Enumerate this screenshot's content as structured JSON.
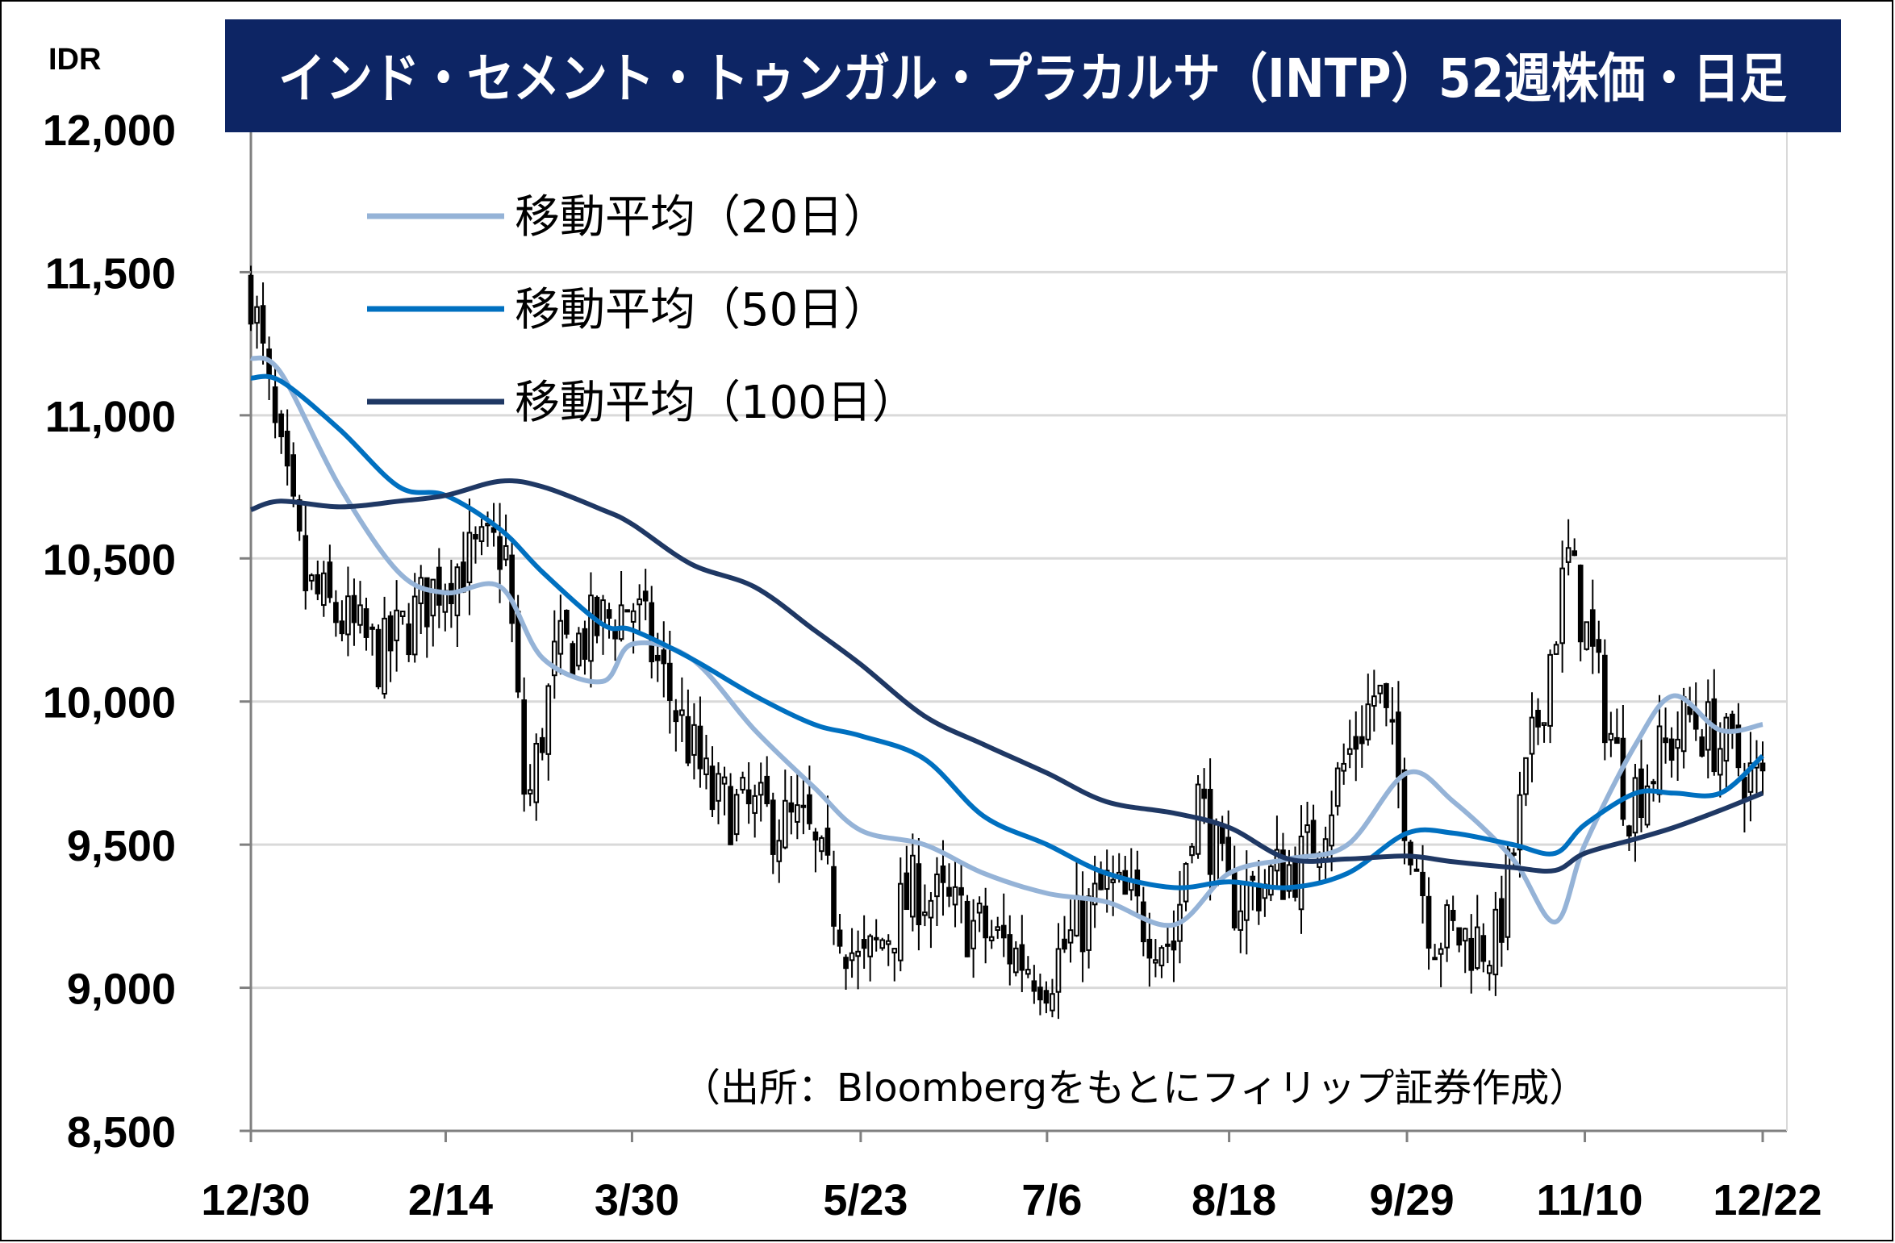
{
  "chart_data": {
    "type": "line",
    "title": "インド・セメント・トゥンガル・プラカルサ（INTP）52週株価・日足",
    "unit": "IDR",
    "ylim": [
      8500,
      12000
    ],
    "y_ticks": [
      "12,000",
      "11,500",
      "11,000",
      "10,500",
      "10,000",
      "9,500",
      "9,000",
      "8,500"
    ],
    "y_tick_values": [
      12000,
      11500,
      11000,
      10500,
      10000,
      9500,
      9000,
      8500
    ],
    "x_ticks": [
      "12/30",
      "2/14",
      "3/30",
      "5/23",
      "7/6",
      "8/18",
      "9/29",
      "11/10",
      "12/22"
    ],
    "grid": true,
    "legend_position": "top-left",
    "source": "（出所：Bloombergをもとにフィリップ証券作成）",
    "candles": {
      "name": "daily price",
      "trading_days": 250,
      "approx_close_anchors": [
        {
          "x": "12/30",
          "close": 11450
        },
        {
          "x": "1/05",
          "close": 10900
        },
        {
          "x": "1/12",
          "close": 10400
        },
        {
          "x": "1/30",
          "close": 10150
        },
        {
          "x": "2/14",
          "close": 10450
        },
        {
          "x": "2/28",
          "close": 10550
        },
        {
          "x": "3/05",
          "close": 9600
        },
        {
          "x": "3/12",
          "close": 10150
        },
        {
          "x": "3/30",
          "close": 10350
        },
        {
          "x": "4/18",
          "close": 9650
        },
        {
          "x": "5/10",
          "close": 9550
        },
        {
          "x": "5/23",
          "close": 9050
        },
        {
          "x": "6/05",
          "close": 9350
        },
        {
          "x": "6/20",
          "close": 9200
        },
        {
          "x": "7/06",
          "close": 9050
        },
        {
          "x": "7/20",
          "close": 9350
        },
        {
          "x": "8/05",
          "close": 9150
        },
        {
          "x": "8/10",
          "close": 9700
        },
        {
          "x": "8/18",
          "close": 9300
        },
        {
          "x": "9/05",
          "close": 9450
        },
        {
          "x": "9/22",
          "close": 10050
        },
        {
          "x": "10/05",
          "close": 9200
        },
        {
          "x": "10/20",
          "close": 9150
        },
        {
          "x": "11/01",
          "close": 10100
        },
        {
          "x": "11/06",
          "close": 10500
        },
        {
          "x": "11/20",
          "close": 9650
        },
        {
          "x": "12/05",
          "close": 9950
        },
        {
          "x": "12/22",
          "close": 9700
        }
      ]
    },
    "series": [
      {
        "name": "移動平均（20日）",
        "color": "#95b3d7",
        "points": [
          [
            "12/30",
            11200
          ],
          [
            "1/06",
            11150
          ],
          [
            "1/20",
            10750
          ],
          [
            "2/03",
            10450
          ],
          [
            "2/14",
            10380
          ],
          [
            "2/27",
            10400
          ],
          [
            "3/09",
            10150
          ],
          [
            "3/23",
            10070
          ],
          [
            "3/30",
            10200
          ],
          [
            "4/13",
            10150
          ],
          [
            "4/28",
            9900
          ],
          [
            "5/12",
            9700
          ],
          [
            "5/23",
            9550
          ],
          [
            "6/07",
            9500
          ],
          [
            "6/21",
            9400
          ],
          [
            "7/06",
            9330
          ],
          [
            "7/20",
            9300
          ],
          [
            "8/05",
            9220
          ],
          [
            "8/18",
            9400
          ],
          [
            "9/01",
            9450
          ],
          [
            "9/15",
            9500
          ],
          [
            "9/29",
            9750
          ],
          [
            "10/10",
            9650
          ],
          [
            "10/24",
            9450
          ],
          [
            "11/03",
            9230
          ],
          [
            "11/10",
            9500
          ],
          [
            "11/22",
            9850
          ],
          [
            "12/01",
            10020
          ],
          [
            "12/12",
            9900
          ],
          [
            "12/22",
            9920
          ]
        ]
      },
      {
        "name": "移動平均（50日）",
        "color": "#0070c0",
        "points": [
          [
            "12/30",
            11130
          ],
          [
            "1/06",
            11120
          ],
          [
            "1/20",
            10950
          ],
          [
            "2/03",
            10750
          ],
          [
            "2/14",
            10720
          ],
          [
            "2/27",
            10600
          ],
          [
            "3/09",
            10450
          ],
          [
            "3/23",
            10270
          ],
          [
            "3/30",
            10250
          ],
          [
            "4/13",
            10150
          ],
          [
            "4/28",
            10020
          ],
          [
            "5/12",
            9920
          ],
          [
            "5/23",
            9880
          ],
          [
            "6/07",
            9800
          ],
          [
            "6/21",
            9600
          ],
          [
            "7/06",
            9500
          ],
          [
            "7/20",
            9400
          ],
          [
            "8/05",
            9350
          ],
          [
            "8/18",
            9370
          ],
          [
            "9/01",
            9350
          ],
          [
            "9/15",
            9400
          ],
          [
            "9/29",
            9540
          ],
          [
            "10/10",
            9540
          ],
          [
            "10/24",
            9500
          ],
          [
            "11/03",
            9470
          ],
          [
            "11/10",
            9570
          ],
          [
            "11/22",
            9680
          ],
          [
            "12/01",
            9680
          ],
          [
            "12/12",
            9680
          ],
          [
            "12/22",
            9810
          ]
        ]
      },
      {
        "name": "移動平均（100日）",
        "color": "#1f3864",
        "points": [
          [
            "12/30",
            10670
          ],
          [
            "1/06",
            10700
          ],
          [
            "1/20",
            10680
          ],
          [
            "2/03",
            10700
          ],
          [
            "2/14",
            10720
          ],
          [
            "2/27",
            10770
          ],
          [
            "3/09",
            10750
          ],
          [
            "3/23",
            10670
          ],
          [
            "3/30",
            10620
          ],
          [
            "4/13",
            10480
          ],
          [
            "4/28",
            10400
          ],
          [
            "5/12",
            10250
          ],
          [
            "5/23",
            10130
          ],
          [
            "6/07",
            9950
          ],
          [
            "6/21",
            9850
          ],
          [
            "7/06",
            9750
          ],
          [
            "7/20",
            9650
          ],
          [
            "8/05",
            9610
          ],
          [
            "8/18",
            9560
          ],
          [
            "9/01",
            9450
          ],
          [
            "9/15",
            9450
          ],
          [
            "9/29",
            9460
          ],
          [
            "10/10",
            9440
          ],
          [
            "10/24",
            9420
          ],
          [
            "11/03",
            9410
          ],
          [
            "11/10",
            9470
          ],
          [
            "11/22",
            9520
          ],
          [
            "12/01",
            9560
          ],
          [
            "12/12",
            9620
          ],
          [
            "12/22",
            9680
          ]
        ]
      }
    ]
  }
}
